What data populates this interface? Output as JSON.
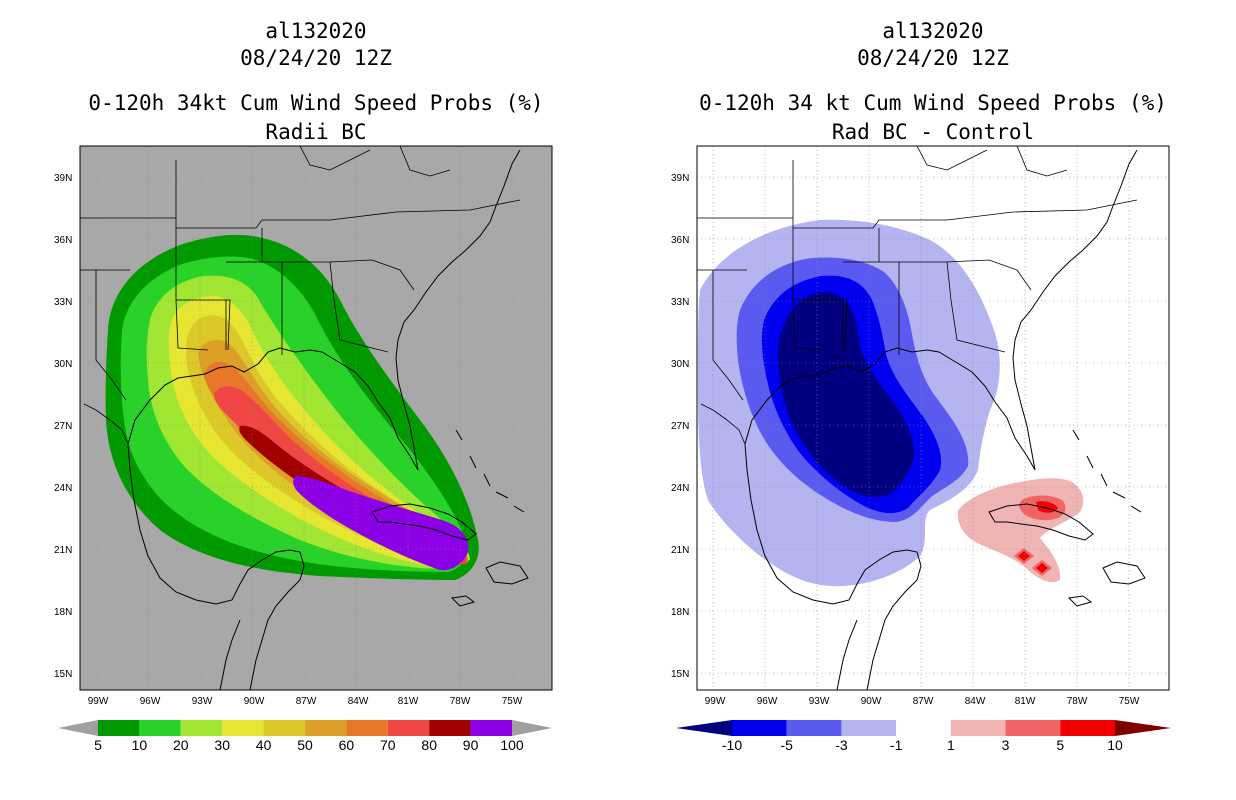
{
  "left_panel": {
    "title_lines": [
      "al132020",
      "08/24/20 12Z",
      "0-120h 34kt Cum Wind Speed Probs (%)",
      "Radii BC"
    ],
    "lat_labels": [
      "39N",
      "36N",
      "33N",
      "30N",
      "27N",
      "24N",
      "21N",
      "18N",
      "15N"
    ],
    "lon_labels": [
      "99W",
      "96W",
      "93W",
      "90W",
      "87W",
      "84W",
      "81W",
      "78W",
      "75W"
    ],
    "colorbar": {
      "colors": [
        "#009a00",
        "#28d228",
        "#a0e632",
        "#e6e632",
        "#dcc828",
        "#dca028",
        "#e67828",
        "#f04646",
        "#a00000",
        "#8c00e6"
      ],
      "labels": [
        "5",
        "10",
        "20",
        "30",
        "40",
        "50",
        "60",
        "70",
        "80",
        "90",
        "100"
      ],
      "end_color": "#a0a0a0"
    },
    "background": "#a8a8a8"
  },
  "right_panel": {
    "title_lines": [
      "al132020",
      "08/24/20 12Z",
      "0-120h 34 kt Cum Wind Speed Probs (%)",
      "Rad BC - Control"
    ],
    "lat_labels": [
      "39N",
      "36N",
      "33N",
      "30N",
      "27N",
      "24N",
      "21N",
      "18N",
      "15N"
    ],
    "lon_labels": [
      "99W",
      "96W",
      "93W",
      "90W",
      "87W",
      "84W",
      "81W",
      "78W",
      "75W"
    ],
    "colorbar": {
      "colors": [
        "#0000f0",
        "#5a5af0",
        "#b4b4f0",
        "#ffffff",
        "#f0b4b4",
        "#f06464",
        "#f00000"
      ],
      "labels": [
        "-10",
        "-5",
        "-3",
        "-1",
        "1",
        "3",
        "5",
        "10"
      ],
      "low_end_color": "#000080",
      "high_end_color": "#800000"
    },
    "background": "#ffffff"
  }
}
